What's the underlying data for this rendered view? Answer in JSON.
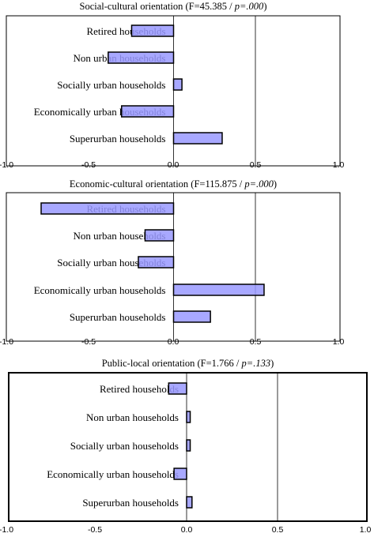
{
  "chart_data": [
    {
      "type": "bar",
      "orientation": "horizontal",
      "title_prefix": "Social-cultural orientation (F=45.385 / ",
      "title_p": "p=.000",
      "title_suffix": ")",
      "categories": [
        "Retired households",
        "Non urban households",
        "Socially urban households",
        "Economically urban households",
        "Superurban households"
      ],
      "values": [
        -0.25,
        -0.39,
        0.05,
        -0.31,
        0.29
      ],
      "xlim": [
        -1.0,
        1.0
      ],
      "xticks": [
        "-1.0",
        "-0.5",
        "0.0",
        "0.5",
        "1.0"
      ],
      "grid": "vertical at 0.0 and 0.5",
      "bar_color": "#9999ff"
    },
    {
      "type": "bar",
      "orientation": "horizontal",
      "title_prefix": "Economic-cultural orientation (F=115.875 / ",
      "title_p": "p=.000",
      "title_suffix": ")",
      "categories": [
        "Retired households",
        "Non urban households",
        "Socially urban households",
        "Economically urban households",
        "Superurban households"
      ],
      "values": [
        -0.79,
        -0.17,
        -0.21,
        0.54,
        0.22
      ],
      "xlim": [
        -1.0,
        1.0
      ],
      "xticks": [
        "-1.0",
        "-0.5",
        "0.0",
        "0.5",
        "1.0"
      ],
      "grid": "vertical at 0.0 and 0.5",
      "bar_color": "#9999ff"
    },
    {
      "type": "bar",
      "orientation": "horizontal",
      "title_prefix": "Public-local orientation (F=1.766 / ",
      "title_p": "p=.133",
      "title_suffix": ")",
      "categories": [
        "Retired households",
        "Non urban households",
        "Socially urban households",
        "Economically urban households",
        "Superurban households"
      ],
      "values": [
        -0.1,
        0.02,
        0.02,
        -0.07,
        0.03
      ],
      "xlim": [
        -1.0,
        1.0
      ],
      "xticks": [
        "-1.0",
        "-0.5",
        "0.0",
        "0.5",
        "1.0"
      ],
      "grid": "vertical at 0.0 and 0.5",
      "bar_color": "#9999ff"
    }
  ]
}
